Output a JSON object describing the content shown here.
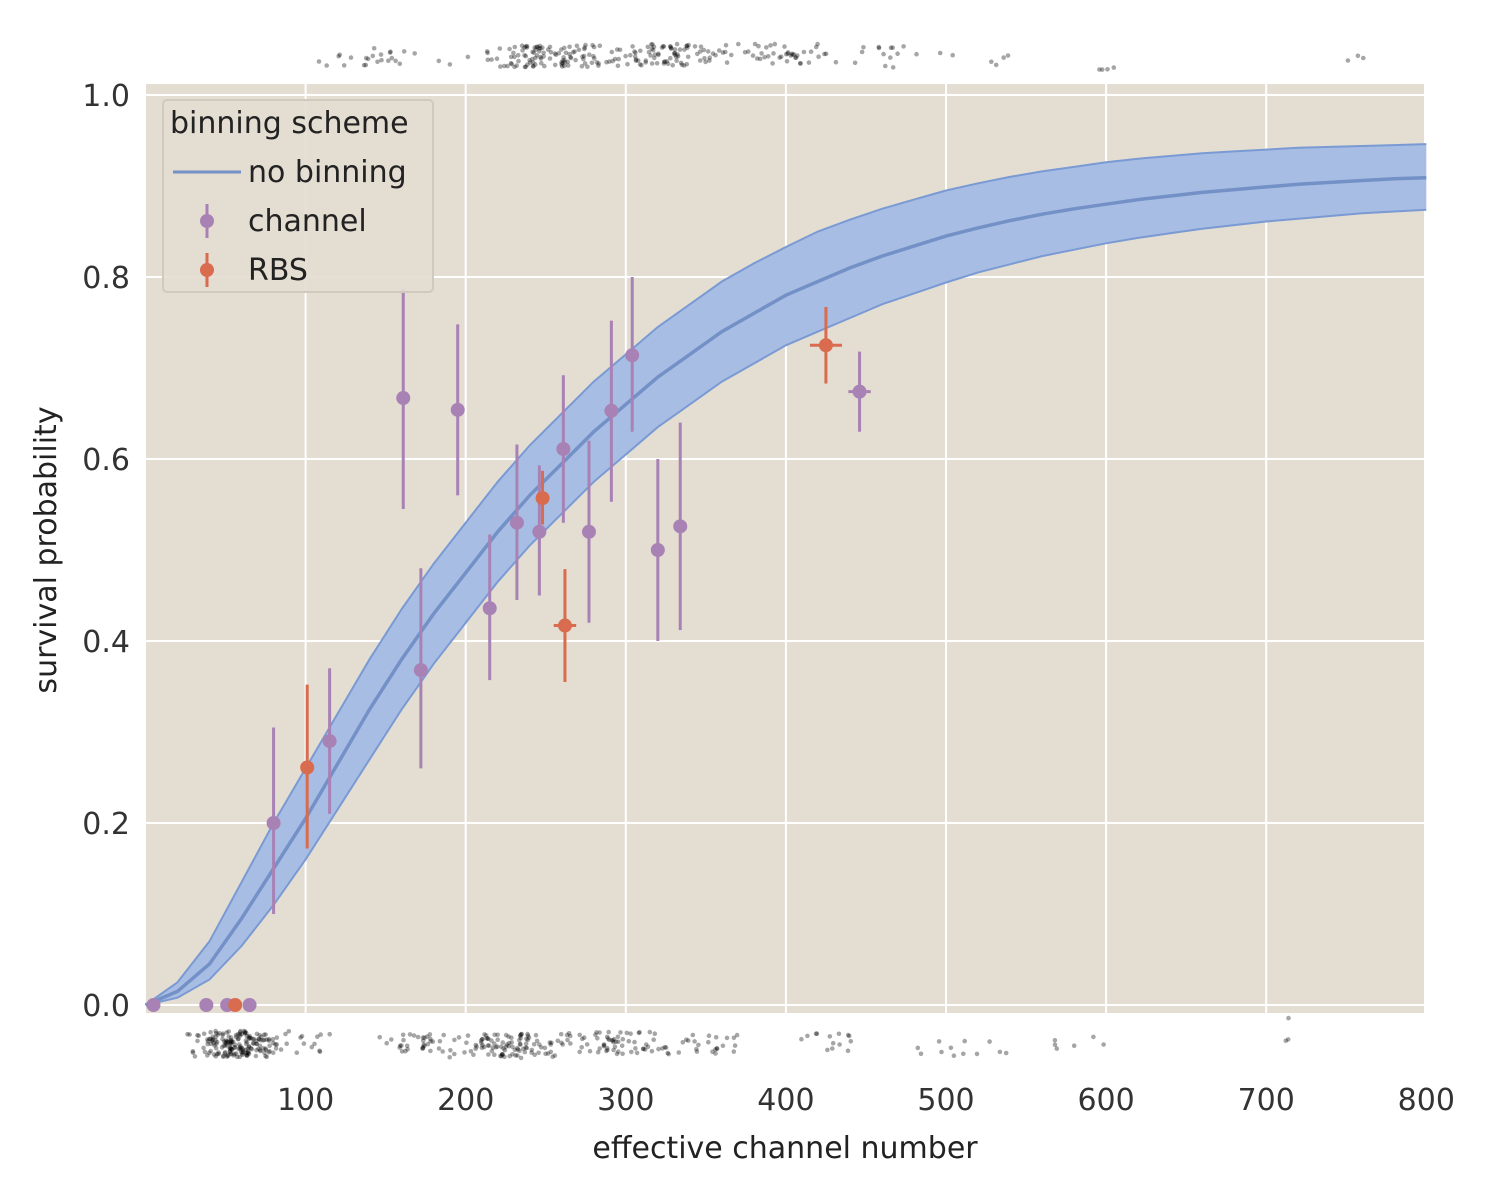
{
  "chart_data": {
    "type": "scatter",
    "title": "",
    "xlabel": "effective channel number",
    "ylabel": "survival probability",
    "xlim": [
      0,
      800
    ],
    "ylim": [
      0,
      1.0
    ],
    "grid": true,
    "xticks": [
      100,
      200,
      300,
      400,
      500,
      600,
      700,
      800
    ],
    "xtick_labels": [
      "100",
      "200",
      "300",
      "400",
      "500",
      "600",
      "700",
      "800"
    ],
    "yticks": [
      0,
      0.2,
      0.4,
      0.6,
      0.8,
      1.0
    ],
    "ytick_labels": [
      "0.0",
      "0.2",
      "0.4",
      "0.6",
      "0.8",
      "1.0"
    ],
    "colors": {
      "background": "#e3ddd2",
      "grid": "#ffffff",
      "fit_line": "#7391c6",
      "band_fill": "#a8bde4",
      "band_edge": "#7a9ad4",
      "channel": "#a882b4",
      "rbs": "#d96b4e",
      "rug": "#000000"
    },
    "legend": {
      "title": "binning scheme",
      "position": "top-left",
      "entries": [
        "no binning",
        "channel",
        "RBS"
      ]
    },
    "fit": {
      "name": "no binning",
      "x": [
        0,
        20,
        40,
        60,
        80,
        100,
        120,
        140,
        160,
        180,
        200,
        220,
        240,
        260,
        280,
        300,
        320,
        340,
        360,
        380,
        400,
        420,
        440,
        460,
        480,
        500,
        520,
        540,
        560,
        580,
        600,
        620,
        640,
        660,
        680,
        700,
        720,
        740,
        760,
        780,
        800
      ],
      "y": [
        0.0,
        0.015,
        0.045,
        0.095,
        0.15,
        0.205,
        0.265,
        0.325,
        0.38,
        0.43,
        0.475,
        0.52,
        0.56,
        0.595,
        0.63,
        0.66,
        0.69,
        0.715,
        0.74,
        0.76,
        0.78,
        0.795,
        0.81,
        0.823,
        0.834,
        0.845,
        0.854,
        0.862,
        0.869,
        0.875,
        0.88,
        0.885,
        0.889,
        0.893,
        0.896,
        0.899,
        0.902,
        0.904,
        0.906,
        0.908,
        0.909
      ],
      "lower": [
        0.0,
        0.008,
        0.028,
        0.065,
        0.11,
        0.16,
        0.215,
        0.27,
        0.325,
        0.375,
        0.42,
        0.465,
        0.505,
        0.54,
        0.575,
        0.605,
        0.635,
        0.66,
        0.685,
        0.705,
        0.725,
        0.74,
        0.755,
        0.77,
        0.782,
        0.794,
        0.805,
        0.814,
        0.823,
        0.83,
        0.837,
        0.843,
        0.848,
        0.853,
        0.857,
        0.861,
        0.864,
        0.867,
        0.87,
        0.872,
        0.874
      ],
      "upper": [
        0.0,
        0.025,
        0.07,
        0.135,
        0.2,
        0.26,
        0.32,
        0.38,
        0.435,
        0.485,
        0.53,
        0.575,
        0.615,
        0.65,
        0.685,
        0.715,
        0.745,
        0.77,
        0.795,
        0.815,
        0.833,
        0.85,
        0.863,
        0.875,
        0.885,
        0.895,
        0.903,
        0.91,
        0.916,
        0.921,
        0.926,
        0.93,
        0.933,
        0.936,
        0.938,
        0.94,
        0.942,
        0.943,
        0.944,
        0.945,
        0.946
      ]
    },
    "series": [
      {
        "name": "channel",
        "points": [
          {
            "x": 5,
            "y": 0.0,
            "ylo": 0.0,
            "yhi": 0.0
          },
          {
            "x": 38,
            "y": 0.0,
            "ylo": 0.0,
            "yhi": 0.0
          },
          {
            "x": 51,
            "y": 0.0,
            "ylo": 0.0,
            "yhi": 0.0
          },
          {
            "x": 65,
            "y": 0.0,
            "ylo": 0.0,
            "yhi": 0.0
          },
          {
            "x": 80,
            "y": 0.2,
            "ylo": 0.1,
            "yhi": 0.305
          },
          {
            "x": 115,
            "y": 0.29,
            "ylo": 0.21,
            "yhi": 0.37
          },
          {
            "x": 161,
            "y": 0.667,
            "ylo": 0.545,
            "yhi": 0.787
          },
          {
            "x": 172,
            "y": 0.368,
            "ylo": 0.26,
            "yhi": 0.48
          },
          {
            "x": 195,
            "y": 0.654,
            "ylo": 0.56,
            "yhi": 0.748
          },
          {
            "x": 215,
            "y": 0.436,
            "ylo": 0.357,
            "yhi": 0.517
          },
          {
            "x": 232,
            "y": 0.53,
            "ylo": 0.445,
            "yhi": 0.616
          },
          {
            "x": 246,
            "y": 0.52,
            "ylo": 0.45,
            "yhi": 0.593
          },
          {
            "x": 261,
            "y": 0.611,
            "ylo": 0.53,
            "yhi": 0.692
          },
          {
            "x": 277,
            "y": 0.52,
            "ylo": 0.42,
            "yhi": 0.62
          },
          {
            "x": 291,
            "y": 0.653,
            "ylo": 0.553,
            "yhi": 0.752
          },
          {
            "x": 304,
            "y": 0.714,
            "ylo": 0.63,
            "yhi": 0.8
          },
          {
            "x": 320,
            "y": 0.5,
            "ylo": 0.4,
            "yhi": 0.6
          },
          {
            "x": 334,
            "y": 0.526,
            "ylo": 0.412,
            "yhi": 0.64
          },
          {
            "x": 446,
            "y": 0.674,
            "ylo": 0.63,
            "yhi": 0.718,
            "xerr": 7
          }
        ]
      },
      {
        "name": "RBS",
        "points": [
          {
            "x": 56,
            "y": 0.0,
            "ylo": 0.0,
            "yhi": 0.0
          },
          {
            "x": 101,
            "y": 0.261,
            "ylo": 0.172,
            "yhi": 0.352
          },
          {
            "x": 248,
            "y": 0.557,
            "ylo": 0.528,
            "yhi": 0.587
          },
          {
            "x": 262,
            "y": 0.417,
            "ylo": 0.355,
            "yhi": 0.479,
            "xerr": 7
          },
          {
            "x": 425,
            "y": 0.725,
            "ylo": 0.683,
            "yhi": 0.767,
            "xerr": 10
          }
        ]
      }
    ]
  }
}
